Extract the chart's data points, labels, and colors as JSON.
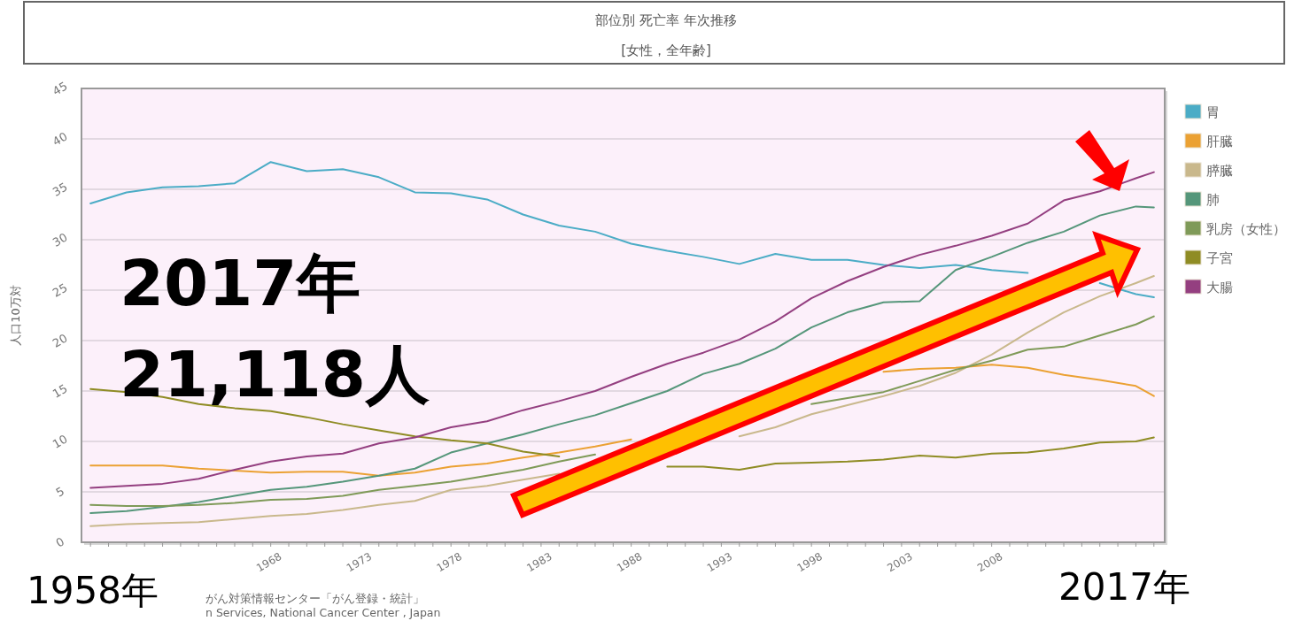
{
  "chart_data": {
    "type": "line",
    "title": "部位別 死亡率 年次推移",
    "subtitle": "[女性，全年齢]",
    "ylabel": "人口10万対",
    "x": [
      1958,
      1960,
      1962,
      1964,
      1966,
      1968,
      1970,
      1972,
      1974,
      1976,
      1978,
      1980,
      1982,
      1984,
      1986,
      1988,
      1990,
      1992,
      1994,
      1996,
      1998,
      2000,
      2002,
      2004,
      2006,
      2008,
      2010,
      2012,
      2014,
      2016,
      2017
    ],
    "series": [
      {
        "name": "胃",
        "color": "#4bacc6",
        "values": [
          33.6,
          34.7,
          35.2,
          35.3,
          35.6,
          37.7,
          36.8,
          37.0,
          36.2,
          34.7,
          34.6,
          34.0,
          32.5,
          31.4,
          30.8,
          29.6,
          28.9,
          28.3,
          27.6,
          28.6,
          28.0,
          28.0,
          27.5,
          27.2,
          27.5,
          27.0,
          26.7,
          null,
          25.7,
          24.6,
          24.3
        ]
      },
      {
        "name": "肝臓",
        "color": "#eba133",
        "values": [
          7.6,
          7.6,
          7.6,
          7.3,
          7.1,
          6.9,
          7.0,
          7.0,
          6.6,
          6.9,
          7.5,
          7.8,
          8.4,
          8.9,
          9.5,
          10.2,
          null,
          null,
          null,
          null,
          null,
          null,
          16.9,
          17.2,
          17.3,
          17.6,
          17.3,
          16.6,
          16.1,
          15.5,
          14.5
        ]
      },
      {
        "name": "膵臓",
        "color": "#c9b88c",
        "values": [
          1.6,
          1.8,
          1.9,
          2.0,
          2.3,
          2.6,
          2.8,
          3.2,
          3.7,
          4.1,
          5.2,
          5.6,
          6.2,
          6.8,
          null,
          null,
          null,
          null,
          10.5,
          11.4,
          12.7,
          13.6,
          14.5,
          15.5,
          16.8,
          18.6,
          20.8,
          22.8,
          24.4,
          25.7,
          26.4
        ]
      },
      {
        "name": "肺",
        "color": "#55967a",
        "values": [
          2.9,
          3.1,
          3.5,
          4.0,
          4.6,
          5.2,
          5.5,
          6.0,
          6.6,
          7.3,
          8.9,
          9.8,
          10.7,
          11.7,
          12.6,
          13.8,
          15.0,
          16.7,
          17.7,
          19.2,
          21.3,
          22.8,
          23.8,
          23.9,
          27.0,
          28.3,
          29.7,
          30.8,
          32.4,
          33.3,
          33.2
        ]
      },
      {
        "name": "乳房（女性）",
        "color": "#7f9a58",
        "values": [
          3.7,
          3.6,
          3.6,
          3.7,
          3.9,
          4.2,
          4.3,
          4.6,
          5.2,
          5.6,
          6.0,
          6.6,
          7.2,
          8.0,
          8.7,
          null,
          null,
          null,
          null,
          null,
          13.7,
          14.3,
          14.9,
          16.0,
          17.1,
          18.0,
          19.1,
          19.4,
          20.5,
          21.6,
          22.4
        ]
      },
      {
        "name": "子宮",
        "color": "#8f8c24",
        "values": [
          15.2,
          14.9,
          14.4,
          13.7,
          13.3,
          13.0,
          12.4,
          11.7,
          11.1,
          10.5,
          10.1,
          9.8,
          9.0,
          8.5,
          null,
          null,
          7.5,
          7.5,
          7.2,
          7.8,
          7.9,
          8.0,
          8.2,
          8.6,
          8.4,
          8.8,
          8.9,
          9.3,
          9.9,
          10.0,
          10.4
        ]
      },
      {
        "name": "大腸",
        "color": "#943f80",
        "values": [
          5.4,
          5.6,
          5.8,
          6.3,
          7.2,
          8.0,
          8.5,
          8.8,
          9.8,
          10.4,
          11.4,
          12.0,
          13.1,
          14.0,
          15.0,
          16.4,
          17.7,
          18.8,
          20.1,
          21.9,
          24.2,
          25.9,
          27.3,
          28.5,
          29.4,
          30.4,
          31.6,
          33.9,
          34.8,
          36.1,
          36.7
        ]
      }
    ],
    "xlim": [
      1957.5,
      2017.6
    ],
    "xticks": [
      {
        "value": 1958,
        "label": null
      },
      {
        "value": 1959,
        "label": null
      },
      {
        "value": 1960,
        "label": null
      },
      {
        "value": 1961,
        "label": null
      },
      {
        "value": 1962,
        "label": null
      },
      {
        "value": 1963,
        "label": null
      },
      {
        "value": 1964,
        "label": null
      },
      {
        "value": 1965,
        "label": null
      },
      {
        "value": 1966,
        "label": null
      },
      {
        "value": 1967,
        "label": null
      },
      1968,
      {
        "value": 1969,
        "label": null
      },
      {
        "value": 1970,
        "label": null
      },
      {
        "value": 1971,
        "label": null
      },
      {
        "value": 1972,
        "label": null
      },
      1973,
      {
        "value": 1974,
        "label": null
      },
      {
        "value": 1975,
        "label": null
      },
      {
        "value": 1976,
        "label": null
      },
      {
        "value": 1977,
        "label": null
      },
      1978,
      {
        "value": 1979,
        "label": null
      },
      {
        "value": 1980,
        "label": null
      },
      {
        "value": 1981,
        "label": null
      },
      {
        "value": 1982,
        "label": null
      },
      1983,
      {
        "value": 1984,
        "label": null
      },
      {
        "value": 1985,
        "label": null
      },
      {
        "value": 1986,
        "label": null
      },
      {
        "value": 1987,
        "label": null
      },
      1988,
      {
        "value": 1989,
        "label": null
      },
      {
        "value": 1990,
        "label": null
      },
      {
        "value": 1991,
        "label": null
      },
      {
        "value": 1992,
        "label": null
      },
      1993,
      {
        "value": 1994,
        "label": null
      },
      {
        "value": 1995,
        "label": null
      },
      {
        "value": 1996,
        "label": null
      },
      {
        "value": 1997,
        "label": null
      },
      1998,
      {
        "value": 1999,
        "label": null
      },
      {
        "value": 2000,
        "label": null
      },
      {
        "value": 2001,
        "label": null
      },
      {
        "value": 2002,
        "label": null
      },
      2003,
      {
        "value": 2004,
        "label": null
      },
      {
        "value": 2005,
        "label": null
      },
      {
        "value": 2006,
        "label": null
      },
      {
        "value": 2007,
        "label": null
      },
      2008,
      {
        "value": 2009,
        "label": null
      },
      {
        "value": 2010,
        "label": null
      },
      {
        "value": 2011,
        "label": null
      },
      {
        "value": 2012,
        "label": null
      },
      {
        "value": 2013,
        "label": null
      },
      {
        "value": 2014,
        "label": null
      },
      {
        "value": 2015,
        "label": null
      },
      {
        "value": 2016,
        "label": null
      },
      {
        "value": 2017,
        "label": null
      }
    ],
    "ylim": [
      0,
      45
    ],
    "yticks": [
      0,
      5,
      10,
      15,
      20,
      25,
      30,
      35,
      40,
      45
    ],
    "grid": "y",
    "legend": "right",
    "marker": "none",
    "line_style": "solid",
    "annotations": [
      "2017年",
      "21,118人",
      "1958年",
      "2017年",
      "がん対策情報センター「がん登録・統計」",
      "n Services, National Cancer Center , Japan"
    ]
  }
}
